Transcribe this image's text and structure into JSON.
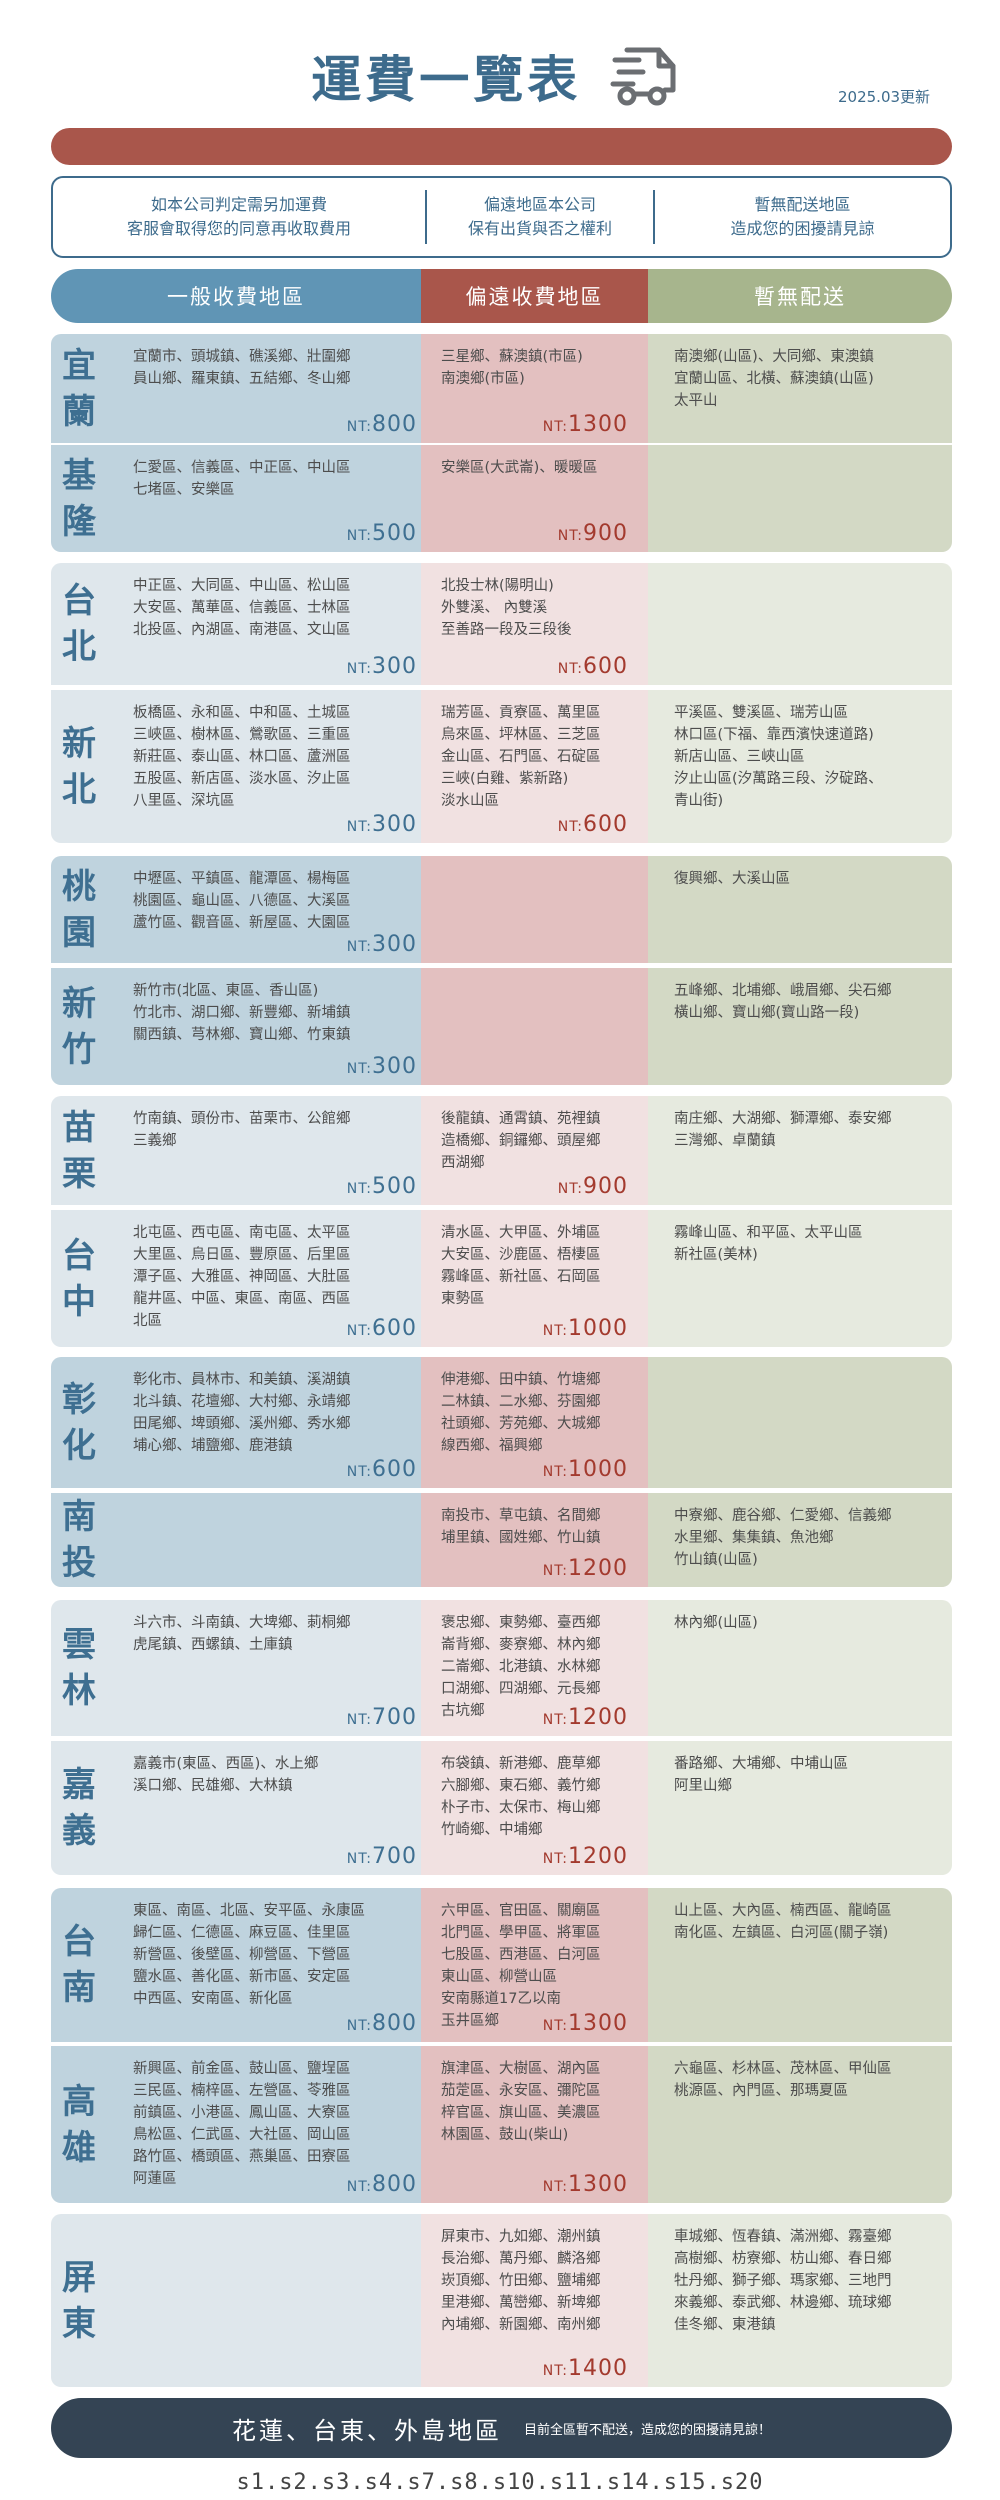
{
  "header": {
    "title": "運費一覽表",
    "truck_icon": "truck-icon",
    "updated": "2025.03更新"
  },
  "notice": [
    [
      "如本公司判定需另加運費",
      "客服會取得您的同意再收取費用"
    ],
    [
      "偏遠地區本公司",
      "保有出貨與否之權利"
    ],
    [
      "暫無配送地區",
      "造成您的困擾請見諒"
    ]
  ],
  "columns": {
    "general": "一般收費地區",
    "remote": "偏遠收費地區",
    "none": "暫無配送"
  },
  "colors": {
    "title": "#3d6b8c",
    "blue": "#6095b5",
    "red": "#a9564b",
    "green": "#a7b58d",
    "footer": "#344454"
  },
  "price_prefix": "NT:",
  "regions": [
    {
      "name": "宜蘭",
      "general": [
        "宜蘭市、頭城鎮、礁溪鄉、壯圍鄉",
        "員山鄉、羅東鎮、五結鄉、冬山鄉"
      ],
      "general_price": "800",
      "remote": [
        "三星鄉、蘇澳鎮(市區)",
        "南澳鄉(市區)"
      ],
      "remote_price": "1300",
      "none": [
        "南澳鄉(山區)、大同鄉、東澳鎮",
        "宜蘭山區、北橫、蘇澳鎮(山區)",
        "太平山"
      ]
    },
    {
      "name": "基隆",
      "general": [
        "仁愛區、信義區、中正區、中山區",
        "七堵區、安樂區"
      ],
      "general_price": "500",
      "remote": [
        "安樂區(大武崙)、暖暖區"
      ],
      "remote_price": "900",
      "none": []
    },
    {
      "name": "台北",
      "general": [
        "中正區、大同區、中山區、松山區",
        "大安區、萬華區、信義區、士林區",
        "北投區、內湖區、南港區、文山區"
      ],
      "general_price": "300",
      "remote": [
        "北投士林(陽明山)",
        "外雙溪、 內雙溪",
        "至善路一段及三段後"
      ],
      "remote_price": "600",
      "none": []
    },
    {
      "name": "新北",
      "general": [
        "板橋區、永和區、中和區、土城區",
        "三峽區、樹林區、鶯歌區、三重區",
        "新莊區、泰山區、林口區、蘆洲區",
        "五股區、新店區、淡水區、汐止區",
        "八里區、深坑區"
      ],
      "general_price": "300",
      "remote": [
        "瑞芳區、貢寮區、萬里區",
        "烏來區、坪林區、三芝區",
        "金山區、石門區、石碇區",
        "三峽(白雞、紫新路)",
        "淡水山區"
      ],
      "remote_price": "600",
      "none": [
        "平溪區、雙溪區、瑞芳山區",
        "林口區(下福、靠西濱快速道路)",
        "新店山區、三峽山區",
        "汐止山區(汐萬路三段、汐碇路、",
        "青山街)"
      ]
    },
    {
      "name": "桃園",
      "general": [
        "中壢區、平鎮區、龍潭區、楊梅區",
        "桃園區、龜山區、八德區、大溪區",
        "蘆竹區、觀音區、新屋區、大園區"
      ],
      "general_price": "300",
      "remote": [],
      "remote_price": "",
      "none": [
        "復興鄉、大溪山區"
      ]
    },
    {
      "name": "新竹",
      "general": [
        "新竹市(北區、東區、香山區)",
        "竹北市、湖口鄉、新豐鄉、新埔鎮",
        "關西鎮、芎林鄉、寶山鄉、竹東鎮"
      ],
      "general_price": "300",
      "remote": [],
      "remote_price": "",
      "none": [
        "五峰鄉、北埔鄉、峨眉鄉、尖石鄉",
        "橫山鄉、寶山鄉(寶山路一段)"
      ]
    },
    {
      "name": "苗栗",
      "general": [
        "竹南鎮、頭份市、苗栗市、公館鄉",
        "三義鄉"
      ],
      "general_price": "500",
      "remote": [
        "後龍鎮、通霄鎮、苑裡鎮",
        "造橋鄉、銅鑼鄉、頭屋鄉",
        "西湖鄉"
      ],
      "remote_price": "900",
      "none": [
        "南庄鄉、大湖鄉、獅潭鄉、泰安鄉",
        "三灣鄉、卓蘭鎮"
      ]
    },
    {
      "name": "台中",
      "general": [
        "北屯區、西屯區、南屯區、太平區",
        "大里區、烏日區、豐原區、后里區",
        "潭子區、大雅區、神岡區、大肚區",
        "龍井區、中區、東區、南區、西區",
        "北區"
      ],
      "general_price": "600",
      "remote": [
        "清水區、大甲區、外埔區",
        "大安區、沙鹿區、梧棲區",
        "霧峰區、新社區、石岡區",
        "東勢區"
      ],
      "remote_price": "1000",
      "none": [
        "霧峰山區、和平區、太平山區",
        "新社區(美林)"
      ]
    },
    {
      "name": "彰化",
      "general": [
        "彰化市、員林市、和美鎮、溪湖鎮",
        "北斗鎮、花壇鄉、大村鄉、永靖鄉",
        "田尾鄉、埤頭鄉、溪州鄉、秀水鄉",
        "埔心鄉、埔鹽鄉、鹿港鎮"
      ],
      "general_price": "600",
      "remote": [
        "伸港鄉、田中鎮、竹塘鄉",
        "二林鎮、二水鄉、芬園鄉",
        "社頭鄉、芳苑鄉、大城鄉",
        "線西鄉、福興鄉"
      ],
      "remote_price": "1000",
      "none": []
    },
    {
      "name": "南投",
      "general": [],
      "general_price": "",
      "remote": [
        "南投市、草屯鎮、名間鄉",
        "埔里鎮、國姓鄉、竹山鎮"
      ],
      "remote_price": "1200",
      "none": [
        "中寮鄉、鹿谷鄉、仁愛鄉、信義鄉",
        "水里鄉、集集鎮、魚池鄉",
        "竹山鎮(山區)"
      ]
    },
    {
      "name": "雲林",
      "general": [
        "斗六市、斗南鎮、大埤鄉、莿桐鄉",
        "虎尾鎮、西螺鎮、土庫鎮"
      ],
      "general_price": "700",
      "remote": [
        "褒忠鄉、東勢鄉、臺西鄉",
        "崙背鄉、麥寮鄉、林內鄉",
        "二崙鄉、北港鎮、水林鄉",
        "口湖鄉、四湖鄉、元長鄉",
        "古坑鄉"
      ],
      "remote_price": "1200",
      "none": [
        "林內鄉(山區)"
      ]
    },
    {
      "name": "嘉義",
      "general": [
        "嘉義市(東區、西區)、水上鄉",
        "溪口鄉、民雄鄉、大林鎮"
      ],
      "general_price": "700",
      "remote": [
        "布袋鎮、新港鄉、鹿草鄉",
        "六腳鄉、東石鄉、義竹鄉",
        "朴子市、太保市、梅山鄉",
        "竹崎鄉、中埔鄉"
      ],
      "remote_price": "1200",
      "none": [
        "番路鄉、大埔鄉、中埔山區",
        "阿里山鄉"
      ]
    },
    {
      "name": "台南",
      "general": [
        "東區、南區、北區、安平區、永康區",
        "歸仁區、仁德區、麻豆區、佳里區",
        "新營區、後壁區、柳營區、下營區",
        "鹽水區、善化區、新市區、安定區",
        "中西區、安南區、新化區"
      ],
      "general_price": "800",
      "remote": [
        "六甲區、官田區、關廟區",
        "北門區、學甲區、將軍區",
        "七股區、西港區、白河區",
        "東山區、柳營山區",
        "安南縣道17乙以南",
        "玉井區鄉"
      ],
      "remote_price": "1300",
      "none": [
        "山上區、大內區、楠西區、龍崎區",
        "南化區、左鎮區、白河區(關子嶺)"
      ]
    },
    {
      "name": "高雄",
      "general": [
        "新興區、前金區、鼓山區、鹽埕區",
        "三民區、楠梓區、左營區、苓雅區",
        "前鎮區、小港區、鳳山區、大寮區",
        "鳥松區、仁武區、大社區、岡山區",
        "路竹區、橋頭區、燕巢區、田寮區",
        "阿蓮區"
      ],
      "general_price": "800",
      "remote": [
        "旗津區、大樹區、湖內區",
        "茄萣區、永安區、彌陀區",
        "梓官區、旗山區、美濃區",
        "林園區、鼓山(柴山)"
      ],
      "remote_price": "1300",
      "none": [
        "六龜區、杉林區、茂林區、甲仙區",
        "桃源區、內門區、那瑪夏區"
      ]
    },
    {
      "name": "屏東",
      "general": [],
      "general_price": "",
      "remote": [
        "屏東市、九如鄉、潮州鎮",
        "長治鄉、萬丹鄉、麟洛鄉",
        "崁頂鄉、竹田鄉、鹽埔鄉",
        "里港鄉、萬巒鄉、新埤鄉",
        "內埔鄉、新園鄉、南州鄉"
      ],
      "remote_price": "1400",
      "none": [
        "車城鄉、恆春鎮、滿洲鄉、霧臺鄉",
        "高樹鄉、枋寮鄉、枋山鄉、春日鄉",
        "牡丹鄉、獅子鄉、瑪家鄉、三地門",
        "來義鄉、泰武鄉、林邊鄉、琉球鄉",
        "佳冬鄉、東港鎮"
      ]
    }
  ],
  "footer": {
    "areas": "花蓮、台東、外島地區",
    "note": "目前全區暫不配送，造成您的困擾請見諒！"
  },
  "codes": "s1.s2.s3.s4.s7.s8.s10.s11.s14.s15.s20"
}
